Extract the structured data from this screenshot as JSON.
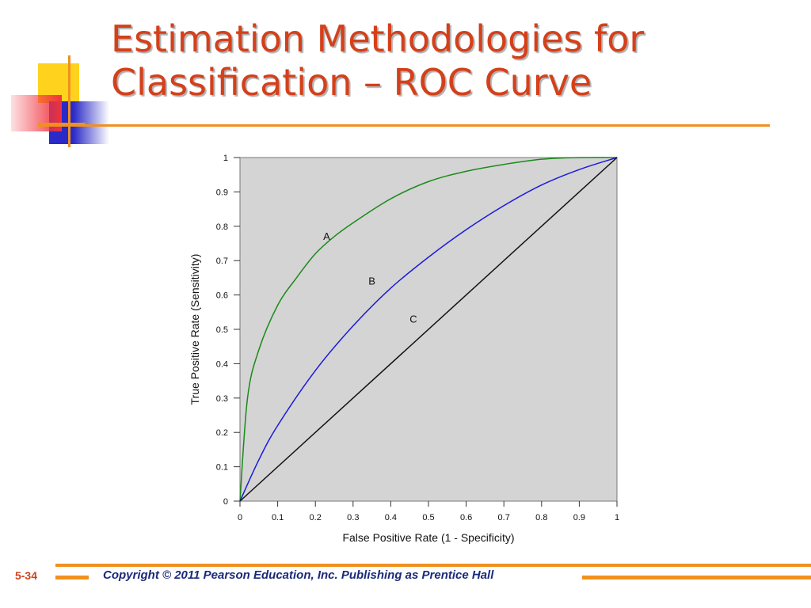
{
  "slide": {
    "title_line1": "Estimation Methodologies for",
    "title_line2": "Classification – ROC Curve",
    "number": "5-34",
    "copyright": "Copyright © 2011 Pearson Education, Inc. Publishing as Prentice Hall",
    "colors": {
      "title": "#d4401a",
      "accent_rule": "#f0901e",
      "footer_text": "#1a2a7a",
      "deco_yellow": "#ffd21e",
      "deco_red": "#f0323c",
      "deco_blue": "#2a2ac8"
    }
  },
  "chart_data": {
    "type": "line",
    "xlabel": "False Positive Rate (1 - Specificity)",
    "ylabel": "True Positive Rate (Sensitivity)",
    "xlim": [
      0,
      1
    ],
    "ylim": [
      0,
      1
    ],
    "x_ticks": [
      "0",
      "0.1",
      "0.2",
      "0.3",
      "0.4",
      "0.5",
      "0.6",
      "0.7",
      "0.8",
      "0.9",
      "1"
    ],
    "y_ticks": [
      "0",
      "0.1",
      "0.2",
      "0.3",
      "0.4",
      "0.5",
      "0.6",
      "0.7",
      "0.8",
      "0.9",
      "1"
    ],
    "plot_background": "#d4d4d4",
    "grid": false,
    "legend": "none",
    "series": [
      {
        "label": "A",
        "color": "#1a8a1a",
        "x": [
          0,
          0.02,
          0.05,
          0.1,
          0.15,
          0.2,
          0.25,
          0.3,
          0.4,
          0.5,
          0.6,
          0.7,
          0.8,
          0.9,
          1
        ],
        "y": [
          0,
          0.3,
          0.44,
          0.57,
          0.65,
          0.72,
          0.77,
          0.81,
          0.88,
          0.93,
          0.96,
          0.98,
          0.995,
          1,
          1
        ],
        "label_pos": [
          0.23,
          0.76
        ]
      },
      {
        "label": "B",
        "color": "#1a1adc",
        "x": [
          0,
          0.05,
          0.1,
          0.2,
          0.3,
          0.4,
          0.5,
          0.6,
          0.7,
          0.8,
          0.9,
          1
        ],
        "y": [
          0,
          0.12,
          0.22,
          0.38,
          0.51,
          0.62,
          0.71,
          0.79,
          0.86,
          0.92,
          0.965,
          1
        ],
        "label_pos": [
          0.35,
          0.63
        ]
      },
      {
        "label": "C",
        "color": "#111111",
        "x": [
          0,
          1
        ],
        "y": [
          0,
          1
        ],
        "label_pos": [
          0.46,
          0.52
        ]
      }
    ]
  }
}
